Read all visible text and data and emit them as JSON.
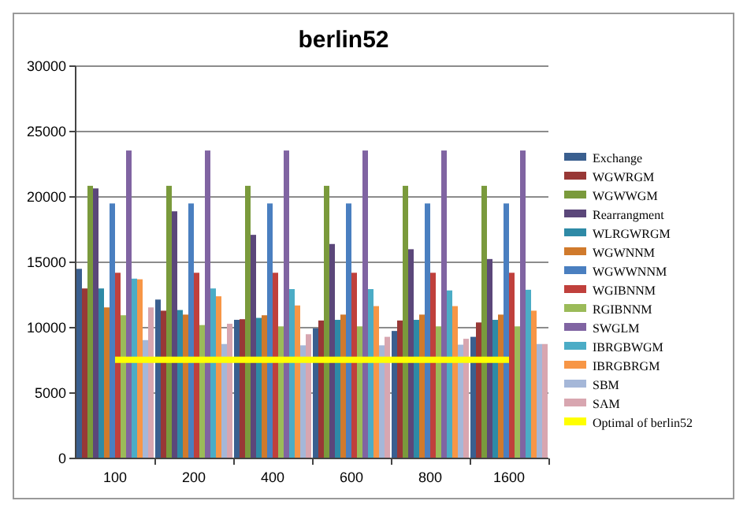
{
  "chart_data": {
    "type": "bar",
    "title": "berlin52",
    "categories": [
      "100",
      "200",
      "400",
      "600",
      "800",
      "1600"
    ],
    "ylim": [
      0,
      30000
    ],
    "yticks": [
      0,
      5000,
      10000,
      15000,
      20000,
      25000,
      30000
    ],
    "grid": "y",
    "legend": "right",
    "series": [
      {
        "name": "Exchange",
        "color": "#3a5f8f",
        "values": [
          14500,
          12150,
          10600,
          9950,
          9750,
          9300
        ]
      },
      {
        "name": "WGWRGM",
        "color": "#983836",
        "values": [
          13000,
          11300,
          10650,
          10550,
          10550,
          10400
        ]
      },
      {
        "name": "WGWWGM",
        "color": "#7a9a3c",
        "values": [
          20850,
          20850,
          20850,
          20850,
          20850,
          20850
        ]
      },
      {
        "name": "Rearrangment",
        "color": "#5b477a",
        "values": [
          20650,
          18900,
          17100,
          16400,
          16000,
          15250
        ]
      },
      {
        "name": "WLRGWRGM",
        "color": "#2e8aa6",
        "values": [
          13000,
          11350,
          10750,
          10600,
          10600,
          10600
        ]
      },
      {
        "name": "WGWNNM",
        "color": "#d07a2c",
        "values": [
          11550,
          11000,
          10950,
          11000,
          11000,
          11000
        ]
      },
      {
        "name": "WGWWNNM",
        "color": "#4a7fc0",
        "values": [
          19500,
          19500,
          19500,
          19500,
          19500,
          19500
        ]
      },
      {
        "name": "WGIBNNM",
        "color": "#c0403c",
        "values": [
          14200,
          14200,
          14200,
          14200,
          14200,
          14200
        ]
      },
      {
        "name": "RGIBNNM",
        "color": "#9bbb59",
        "values": [
          10950,
          10200,
          10100,
          10100,
          10100,
          10100
        ]
      },
      {
        "name": "SWGLM",
        "color": "#8064a2",
        "values": [
          23550,
          23550,
          23550,
          23550,
          23550,
          23550
        ]
      },
      {
        "name": "IBRGBWGM",
        "color": "#4bacc6",
        "values": [
          13750,
          13000,
          12950,
          12950,
          12850,
          12900
        ]
      },
      {
        "name": "IBRGBRGM",
        "color": "#f79646",
        "values": [
          13700,
          12400,
          11700,
          11650,
          11650,
          11300
        ]
      },
      {
        "name": "SBM",
        "color": "#a5b7d8",
        "values": [
          9050,
          8750,
          8650,
          8650,
          8700,
          8750
        ]
      },
      {
        "name": "SAM",
        "color": "#d8a6b0",
        "values": [
          11550,
          10300,
          9500,
          9300,
          9150,
          8750
        ]
      },
      {
        "name": "Optimal of berlin52",
        "color": "#ffff00",
        "type": "line",
        "values": [
          7542,
          7542,
          7542,
          7542,
          7542,
          7542
        ]
      }
    ]
  }
}
